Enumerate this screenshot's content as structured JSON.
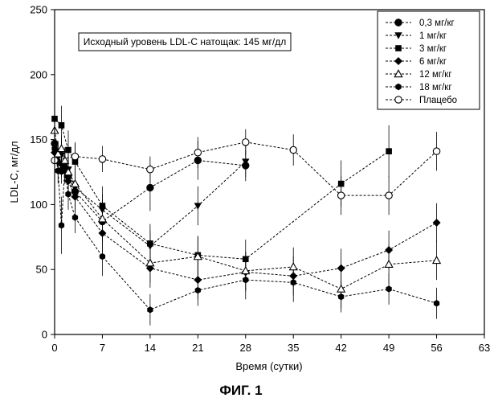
{
  "chart_data": {
    "type": "line",
    "xlabel": "Время (сутки)",
    "ylabel": "LDL-C, мг/дл",
    "xlim": [
      0,
      63
    ],
    "ylim": [
      0,
      250
    ],
    "x_ticks": [
      0,
      7,
      14,
      21,
      28,
      35,
      42,
      49,
      56,
      63
    ],
    "y_ticks": [
      0,
      50,
      100,
      150,
      200,
      250
    ],
    "grid": false,
    "legend_position": "top-right",
    "annotation": "Исходный уровень LDL-C натощак: 145 мг/дл",
    "caption": "ФИГ. 1",
    "series": [
      {
        "name": "0,3 мг/кг",
        "marker": "circle-filled",
        "x": [
          0,
          0.5,
          1,
          1.5,
          2,
          3,
          7,
          14,
          21,
          28
        ],
        "y": [
          147,
          140,
          126,
          128,
          122,
          110,
          87,
          113,
          134,
          130
        ],
        "err": [
          8,
          8,
          10,
          10,
          10,
          12,
          15,
          18,
          15,
          12
        ]
      },
      {
        "name": "1 мг/кг",
        "marker": "triangle-down-filled",
        "x": [
          0,
          0.5,
          1,
          1.5,
          2,
          3,
          7,
          14,
          21,
          28
        ],
        "y": [
          145,
          136,
          138,
          130,
          127,
          113,
          96,
          68,
          99,
          133
        ],
        "err": [
          10,
          10,
          10,
          10,
          12,
          12,
          12,
          12,
          15,
          12
        ]
      },
      {
        "name": "3 мг/кг",
        "marker": "square-filled",
        "x": [
          0,
          1,
          2,
          3,
          7,
          14,
          21,
          28,
          42,
          49
        ],
        "y": [
          166,
          161,
          142,
          133,
          99,
          70,
          61,
          58,
          116,
          141
        ],
        "err": [
          15,
          15,
          15,
          15,
          15,
          15,
          15,
          15,
          18,
          20
        ]
      },
      {
        "name": "6 мг/кг",
        "marker": "diamond-filled",
        "x": [
          0,
          0.5,
          1,
          1.5,
          2,
          3,
          7,
          14,
          21,
          28,
          35,
          42,
          49,
          56
        ],
        "y": [
          140,
          133,
          131,
          126,
          118,
          106,
          78,
          51,
          42,
          48,
          45,
          51,
          65,
          86
        ],
        "err": [
          10,
          10,
          10,
          10,
          12,
          12,
          15,
          15,
          15,
          15,
          15,
          15,
          15,
          15
        ]
      },
      {
        "name": "12 мг/кг",
        "marker": "triangle-up-open",
        "x": [
          0,
          0.5,
          1,
          1.5,
          2,
          3,
          7,
          14,
          21,
          28,
          35,
          42,
          49,
          56
        ],
        "y": [
          157,
          139,
          143,
          134,
          125,
          116,
          89,
          55,
          60,
          49,
          52,
          35,
          54,
          57
        ],
        "err": [
          12,
          10,
          10,
          10,
          12,
          12,
          15,
          15,
          15,
          15,
          15,
          15,
          15,
          15
        ]
      },
      {
        "name": "18 мг/кг",
        "marker": "hexagon-filled",
        "x": [
          0,
          0.5,
          1,
          1.5,
          2,
          3,
          7,
          14,
          21,
          28,
          35,
          42,
          49,
          56
        ],
        "y": [
          143,
          126,
          84,
          128,
          108,
          90,
          60,
          19,
          34,
          42,
          40,
          29,
          35,
          24
        ],
        "err": [
          10,
          10,
          22,
          12,
          12,
          12,
          15,
          12,
          12,
          15,
          15,
          12,
          12,
          12
        ]
      },
      {
        "name": "Плацебо",
        "marker": "circle-open",
        "x": [
          0,
          3,
          7,
          14,
          21,
          28,
          35,
          42,
          49,
          56
        ],
        "y": [
          134,
          137,
          135,
          127,
          140,
          148,
          142,
          107,
          107,
          141
        ],
        "err": [
          8,
          10,
          10,
          10,
          12,
          10,
          12,
          15,
          15,
          15
        ]
      }
    ]
  }
}
